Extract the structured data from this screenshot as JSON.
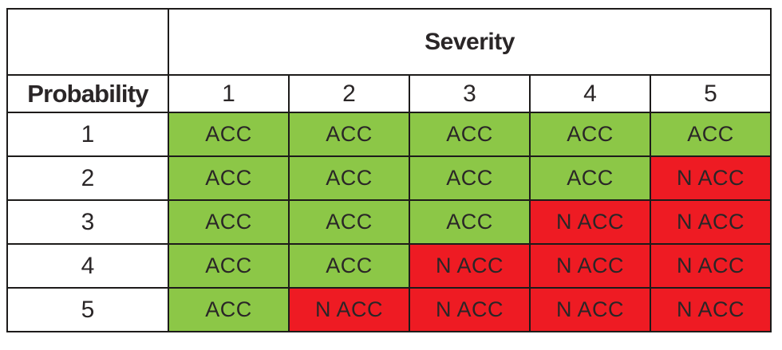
{
  "matrix": {
    "severity_label": "Severity",
    "probability_label": "Probability",
    "severity_levels": [
      "1",
      "2",
      "3",
      "4",
      "5"
    ],
    "rows": [
      {
        "probability": "1",
        "cells": [
          {
            "label": "ACC",
            "status": "acc"
          },
          {
            "label": "ACC",
            "status": "acc"
          },
          {
            "label": "ACC",
            "status": "acc"
          },
          {
            "label": "ACC",
            "status": "acc"
          },
          {
            "label": "ACC",
            "status": "acc"
          }
        ]
      },
      {
        "probability": "2",
        "cells": [
          {
            "label": "ACC",
            "status": "acc"
          },
          {
            "label": "ACC",
            "status": "acc"
          },
          {
            "label": "ACC",
            "status": "acc"
          },
          {
            "label": "ACC",
            "status": "acc"
          },
          {
            "label": "N ACC",
            "status": "nacc"
          }
        ]
      },
      {
        "probability": "3",
        "cells": [
          {
            "label": "ACC",
            "status": "acc"
          },
          {
            "label": "ACC",
            "status": "acc"
          },
          {
            "label": "ACC",
            "status": "acc"
          },
          {
            "label": "N ACC",
            "status": "nacc"
          },
          {
            "label": "N ACC",
            "status": "nacc"
          }
        ]
      },
      {
        "probability": "4",
        "cells": [
          {
            "label": "ACC",
            "status": "acc"
          },
          {
            "label": "ACC",
            "status": "acc"
          },
          {
            "label": "N ACC",
            "status": "nacc"
          },
          {
            "label": "N ACC",
            "status": "nacc"
          },
          {
            "label": "N ACC",
            "status": "nacc"
          }
        ]
      },
      {
        "probability": "5",
        "cells": [
          {
            "label": "ACC",
            "status": "acc"
          },
          {
            "label": "N ACC",
            "status": "nacc"
          },
          {
            "label": "N ACC",
            "status": "nacc"
          },
          {
            "label": "N ACC",
            "status": "nacc"
          },
          {
            "label": "N ACC",
            "status": "nacc"
          }
        ]
      }
    ],
    "colors": {
      "acceptable_green": "#8CC747",
      "not_acceptable_red": "#EE1B23",
      "border": "#1D1B1A",
      "text": "#2A2627",
      "background": "#FFFFFF"
    }
  },
  "chart_data": {
    "type": "table",
    "title": "",
    "row_axis_label": "Probability",
    "col_axis_label": "Severity",
    "columns": [
      "1",
      "2",
      "3",
      "4",
      "5"
    ],
    "rows": [
      "1",
      "2",
      "3",
      "4",
      "5"
    ],
    "values": [
      [
        "ACC",
        "ACC",
        "ACC",
        "ACC",
        "ACC"
      ],
      [
        "ACC",
        "ACC",
        "ACC",
        "ACC",
        "N ACC"
      ],
      [
        "ACC",
        "ACC",
        "ACC",
        "N ACC",
        "N ACC"
      ],
      [
        "ACC",
        "ACC",
        "N ACC",
        "N ACC",
        "N ACC"
      ],
      [
        "ACC",
        "N ACC",
        "N ACC",
        "N ACC",
        "N ACC"
      ]
    ],
    "cell_color_map": {
      "ACC": "#8CC747",
      "N ACC": "#EE1B23"
    },
    "grid": true,
    "legend_position": "none"
  }
}
